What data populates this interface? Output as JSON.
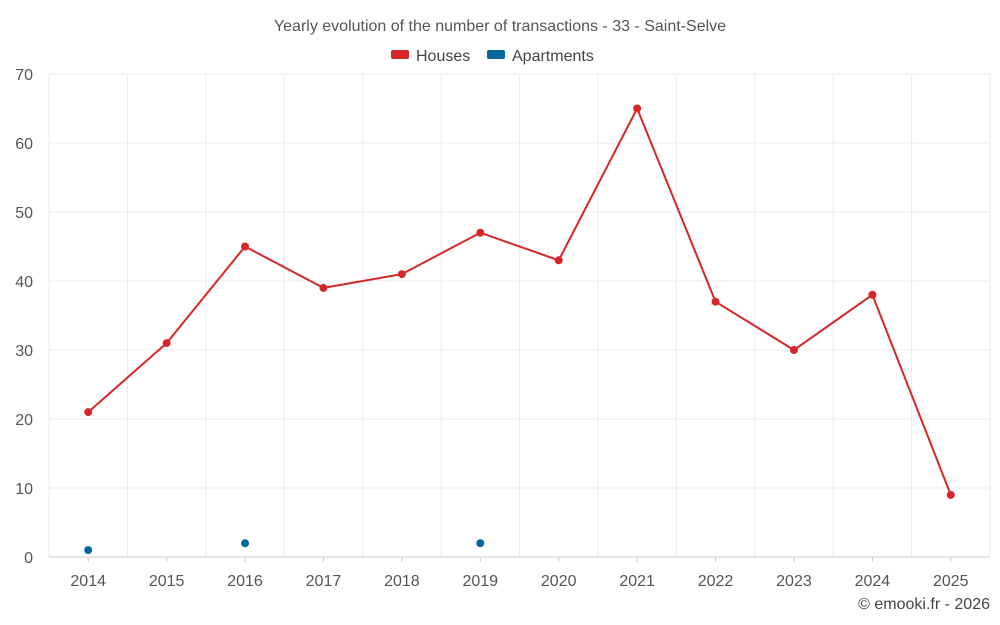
{
  "chart_data": {
    "type": "line",
    "title": "Yearly evolution of the number of transactions - 33 - Saint-Selve",
    "categories": [
      "2014",
      "2015",
      "2016",
      "2017",
      "2018",
      "2019",
      "2020",
      "2021",
      "2022",
      "2023",
      "2024",
      "2025"
    ],
    "series": [
      {
        "name": "Houses",
        "color": "#d62728",
        "style": "line+markers",
        "values": [
          21,
          31,
          45,
          39,
          41,
          47,
          43,
          65,
          37,
          30,
          38,
          9
        ]
      },
      {
        "name": "Apartments",
        "color": "#00669c",
        "style": "markers",
        "values": [
          1,
          null,
          2,
          null,
          null,
          2,
          null,
          null,
          null,
          null,
          null,
          null
        ]
      }
    ],
    "ylim": [
      0,
      70
    ],
    "yticks": [
      0,
      10,
      20,
      30,
      40,
      50,
      60,
      70
    ],
    "xlabel": "",
    "ylabel": "",
    "grid": true,
    "legend_position": "top-center"
  },
  "credit": "© emooki.fr - 2026"
}
